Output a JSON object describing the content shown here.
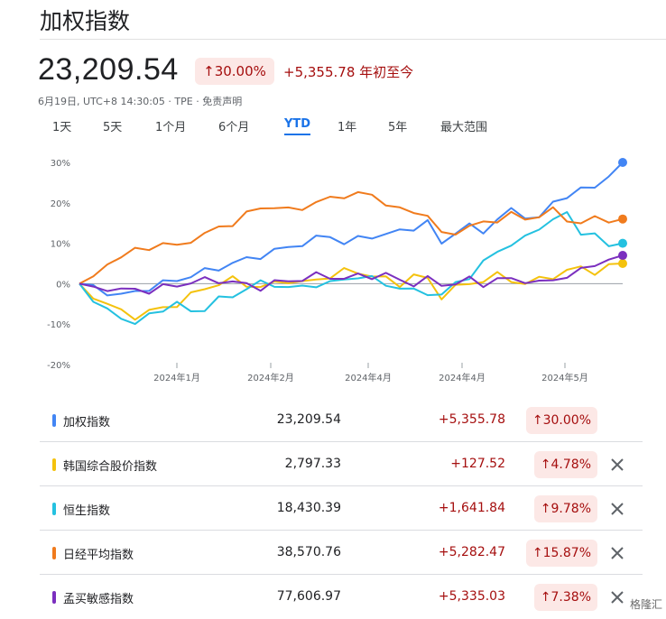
{
  "header": {
    "title": "加权指数",
    "price": "23,209.54",
    "change_pct": "30.00%",
    "change_abs": "+5,355.78 年初至今",
    "meta": "6月19日, UTC+8 14:30:05 · TPE · 免责声明"
  },
  "tabs": [
    "1天",
    "5天",
    "1个月",
    "6个月",
    "YTD",
    "1年",
    "5年",
    "最大范围"
  ],
  "active_tab": "YTD",
  "colors": {
    "taiex": "#4285f4",
    "kospi": "#f4c20d",
    "hsi": "#24c1e0",
    "nikkei": "#f07b1d",
    "sensex": "#7b2fbf",
    "up_text": "#a50e0e",
    "up_bg": "#fce8e6"
  },
  "chart_data": {
    "type": "line",
    "y_ticks": [
      "30%",
      "20%",
      "10%",
      "0%",
      "-10%",
      "-20%"
    ],
    "ylim": [
      -20,
      30
    ],
    "x_labels": [
      "2024年1月",
      "2024年2月",
      "2024年4月",
      "2024年4月",
      "2024年5月"
    ],
    "grid": false,
    "series": [
      {
        "name": "加权指数",
        "color": "#4285f4",
        "values": [
          0,
          -1,
          -2,
          -3,
          -2,
          -1,
          0,
          1,
          2,
          3,
          4,
          5,
          6,
          7,
          8,
          9,
          10,
          11,
          12,
          10,
          11,
          12,
          12,
          13,
          14,
          15,
          10,
          13,
          14,
          13,
          16,
          18,
          17,
          16,
          20,
          22,
          23,
          24,
          27,
          30
        ]
      },
      {
        "name": "韩国综合股价指数",
        "color": "#f4c20d",
        "values": [
          0,
          -3,
          -5,
          -7,
          -8,
          -7,
          -6,
          -5,
          -3,
          -1,
          0,
          1,
          0,
          -1,
          0,
          1,
          0,
          1,
          2,
          3,
          3,
          2,
          1,
          0,
          2,
          1,
          -3,
          -1,
          0,
          1,
          2,
          1,
          0,
          1,
          2,
          3,
          4,
          3,
          4,
          5
        ]
      },
      {
        "name": "恒生指数",
        "color": "#24c1e0",
        "values": [
          0,
          -4,
          -7,
          -8,
          -10,
          -8,
          -6,
          -5,
          -7,
          -6,
          -4,
          -3,
          -1,
          0,
          0,
          -1,
          -1,
          0,
          0,
          1,
          2,
          1,
          0,
          -1,
          -2,
          -2,
          -3,
          0,
          2,
          5,
          8,
          10,
          11,
          14,
          16,
          17,
          13,
          12,
          9,
          10
        ]
      },
      {
        "name": "日经平均指数",
        "color": "#f07b1d",
        "values": [
          0,
          1,
          5,
          7,
          8,
          9,
          10,
          9,
          11,
          12,
          14,
          15,
          17,
          19,
          19,
          18,
          19,
          20,
          21,
          22,
          22,
          22,
          20,
          18,
          18,
          17,
          12,
          13,
          14,
          15,
          16,
          17,
          16,
          17,
          18,
          16,
          15,
          16,
          16,
          16
        ]
      },
      {
        "name": "孟买敏感指数",
        "color": "#7b2fbf",
        "values": [
          0,
          -1,
          -1,
          -2,
          -1,
          -2,
          -1,
          0,
          0,
          1,
          1,
          0,
          0,
          -1,
          0,
          1,
          1,
          2,
          2,
          1,
          2,
          2,
          2,
          1,
          0,
          1,
          0,
          0,
          1,
          0,
          1,
          1,
          1,
          0,
          1,
          2,
          3,
          5,
          6,
          7
        ]
      }
    ]
  },
  "rows": [
    {
      "name": "加权指数",
      "value": "23,209.54",
      "change": "+5,355.78",
      "pct": "30.00%",
      "closable": false
    },
    {
      "name": "韩国综合股价指数",
      "value": "2,797.33",
      "change": "+127.52",
      "pct": "4.78%",
      "closable": true
    },
    {
      "name": "恒生指数",
      "value": "18,430.39",
      "change": "+1,641.84",
      "pct": "9.78%",
      "closable": true
    },
    {
      "name": "日经平均指数",
      "value": "38,570.76",
      "change": "+5,282.47",
      "pct": "15.87%",
      "closable": true
    },
    {
      "name": "孟买敏感指数",
      "value": "77,606.97",
      "change": "+5,335.03",
      "pct": "7.38%",
      "closable": true
    }
  ],
  "arrow": "↑",
  "close_icon": "close-icon",
  "watermark": "格隆汇"
}
